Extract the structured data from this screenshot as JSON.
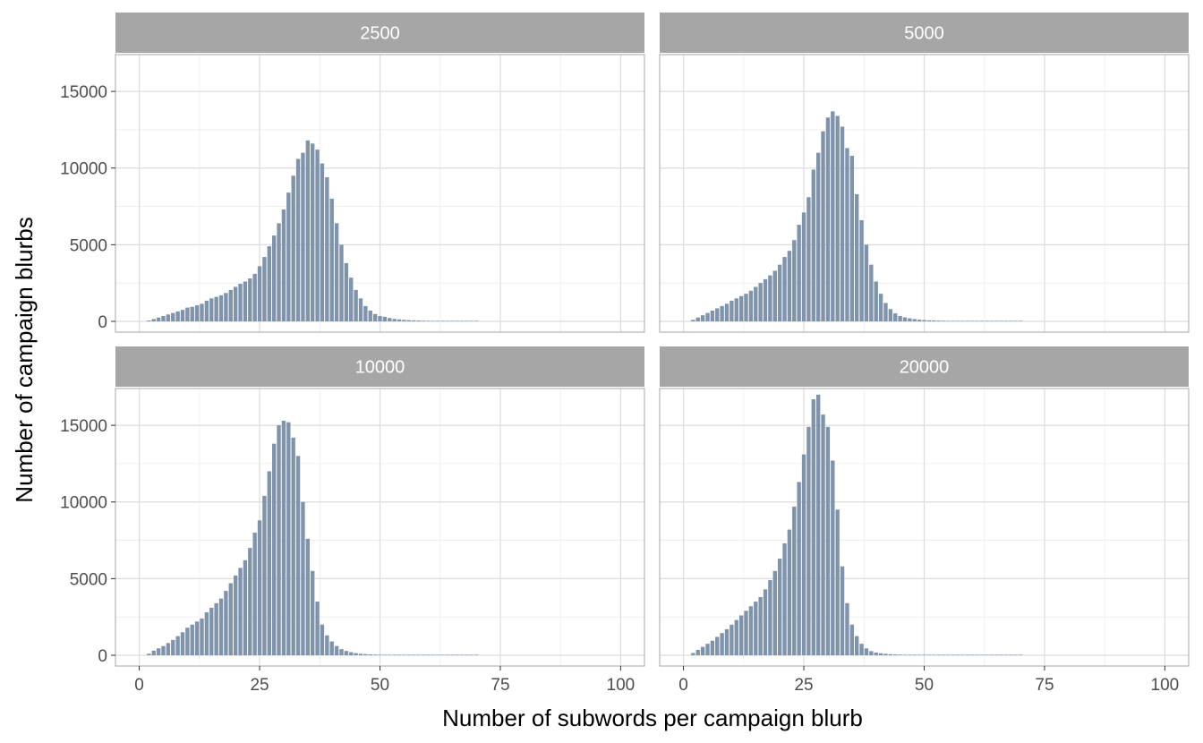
{
  "chart_data": {
    "type": "bar",
    "facet_layout": "2x2 grid",
    "xlabel": "Number of subwords per campaign blurb",
    "ylabel": "Number of campaign blurbs",
    "xlim": [
      0,
      100
    ],
    "ylim": [
      0,
      17000
    ],
    "x_ticks": [
      0,
      25,
      50,
      75,
      100
    ],
    "y_ticks": [
      0,
      5000,
      10000,
      15000
    ],
    "grid": true,
    "bar_color": "#7f93ab",
    "strip_color": "#a6a6a6",
    "panels": [
      {
        "strip_label": "2500",
        "x": [
          2,
          3,
          4,
          5,
          6,
          7,
          8,
          9,
          10,
          11,
          12,
          13,
          14,
          15,
          16,
          17,
          18,
          19,
          20,
          21,
          22,
          23,
          24,
          25,
          26,
          27,
          28,
          29,
          30,
          31,
          32,
          33,
          34,
          35,
          36,
          37,
          38,
          39,
          40,
          41,
          42,
          43,
          44,
          45,
          46,
          47,
          48,
          49,
          50,
          51,
          52,
          53,
          54,
          55,
          56,
          57,
          58,
          59,
          60,
          61,
          62,
          63,
          64,
          65,
          66,
          67,
          68,
          69,
          70
        ],
        "values": [
          60,
          150,
          250,
          350,
          450,
          550,
          650,
          750,
          900,
          950,
          1050,
          1150,
          1350,
          1500,
          1600,
          1700,
          1850,
          2050,
          2250,
          2450,
          2600,
          2800,
          3100,
          3600,
          4200,
          4900,
          5600,
          6400,
          7300,
          8400,
          9500,
          10600,
          11000,
          11800,
          11600,
          11200,
          10300,
          9400,
          8000,
          6400,
          5000,
          3800,
          2850,
          2050,
          1500,
          1000,
          700,
          480,
          350,
          300,
          220,
          160,
          130,
          100,
          80,
          65,
          55,
          45,
          35,
          28,
          22,
          18,
          14,
          10,
          8,
          6,
          5,
          4,
          3
        ]
      },
      {
        "strip_label": "5000",
        "x": [
          2,
          3,
          4,
          5,
          6,
          7,
          8,
          9,
          10,
          11,
          12,
          13,
          14,
          15,
          16,
          17,
          18,
          19,
          20,
          21,
          22,
          23,
          24,
          25,
          26,
          27,
          28,
          29,
          30,
          31,
          32,
          33,
          34,
          35,
          36,
          37,
          38,
          39,
          40,
          41,
          42,
          43,
          44,
          45,
          46,
          47,
          48,
          49,
          50,
          51,
          52,
          53,
          54,
          55,
          56,
          57,
          58,
          59,
          60,
          61,
          62,
          63,
          64,
          65,
          66,
          67,
          68,
          69,
          70
        ],
        "values": [
          100,
          250,
          400,
          550,
          700,
          850,
          1000,
          1150,
          1350,
          1500,
          1650,
          1800,
          2000,
          2250,
          2500,
          2750,
          3000,
          3300,
          3700,
          4200,
          4600,
          5300,
          6300,
          7100,
          8100,
          9900,
          11000,
          12400,
          13300,
          13700,
          13400,
          12700,
          11300,
          10800,
          8300,
          6600,
          5000,
          3700,
          2600,
          1800,
          1200,
          800,
          520,
          350,
          260,
          200,
          150,
          110,
          85,
          70,
          60,
          50,
          40,
          32,
          25,
          20,
          16,
          12,
          9,
          7,
          5,
          4,
          3,
          2,
          2,
          1,
          1,
          1,
          1
        ]
      },
      {
        "strip_label": "10000",
        "x": [
          2,
          3,
          4,
          5,
          6,
          7,
          8,
          9,
          10,
          11,
          12,
          13,
          14,
          15,
          16,
          17,
          18,
          19,
          20,
          21,
          22,
          23,
          24,
          25,
          26,
          27,
          28,
          29,
          30,
          31,
          32,
          33,
          34,
          35,
          36,
          37,
          38,
          39,
          40,
          41,
          42,
          43,
          44,
          45,
          46,
          47,
          48,
          49,
          50,
          51,
          52,
          53,
          54,
          55,
          56,
          57,
          58,
          59,
          60,
          61,
          62,
          63,
          64,
          65,
          66,
          67,
          68,
          69,
          70
        ],
        "values": [
          100,
          300,
          450,
          600,
          800,
          1000,
          1250,
          1500,
          1800,
          2000,
          2200,
          2400,
          2800,
          3100,
          3400,
          3700,
          4200,
          4700,
          5200,
          5700,
          6200,
          7000,
          8000,
          8800,
          10400,
          12000,
          13800,
          15000,
          15300,
          15200,
          14200,
          13000,
          10000,
          7600,
          5500,
          3500,
          2000,
          1300,
          900,
          600,
          400,
          280,
          200,
          140,
          100,
          80,
          60,
          45,
          35,
          28,
          22,
          17,
          13,
          10,
          8,
          6,
          5,
          4,
          3,
          2,
          2,
          1,
          1,
          1,
          1,
          1,
          1,
          1,
          1
        ]
      },
      {
        "strip_label": "20000",
        "x": [
          2,
          3,
          4,
          5,
          6,
          7,
          8,
          9,
          10,
          11,
          12,
          13,
          14,
          15,
          16,
          17,
          18,
          19,
          20,
          21,
          22,
          23,
          24,
          25,
          26,
          27,
          28,
          29,
          30,
          31,
          32,
          33,
          34,
          35,
          36,
          37,
          38,
          39,
          40,
          41,
          42,
          43,
          44,
          45,
          46,
          47,
          48,
          49,
          50,
          51,
          52,
          53,
          54,
          55,
          56,
          57,
          58,
          59,
          60,
          61,
          62,
          63,
          64,
          65,
          66,
          67,
          68,
          69,
          70
        ],
        "values": [
          150,
          350,
          550,
          750,
          950,
          1200,
          1450,
          1700,
          2000,
          2300,
          2600,
          2900,
          3200,
          3500,
          3800,
          4300,
          4900,
          5500,
          6300,
          7300,
          8200,
          9700,
          11300,
          13100,
          14900,
          16700,
          17000,
          15700,
          14900,
          12700,
          9500,
          5800,
          3400,
          2000,
          1250,
          750,
          450,
          270,
          180,
          130,
          95,
          70,
          55,
          42,
          32,
          25,
          19,
          15,
          12,
          9,
          7,
          5,
          4,
          3,
          2,
          2,
          1,
          1,
          1,
          1,
          1,
          1,
          1,
          1,
          1,
          1,
          1,
          1,
          1
        ]
      }
    ]
  }
}
